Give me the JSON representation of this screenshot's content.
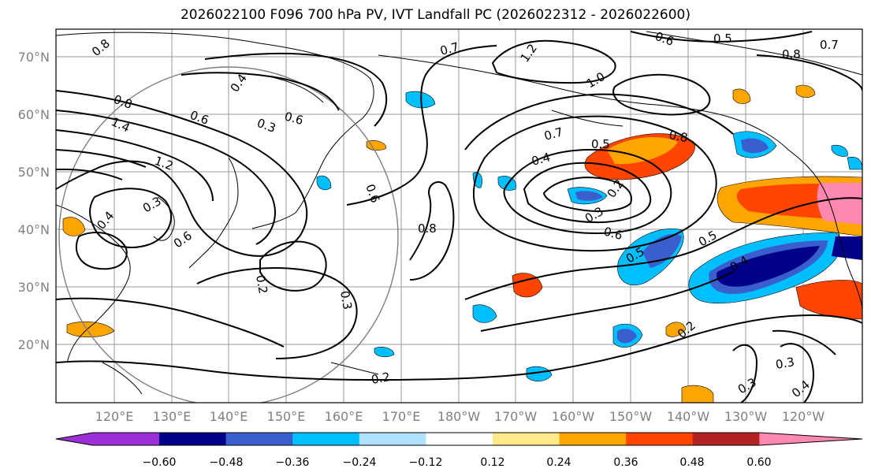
{
  "title": "2026022100 F096 700 hPa PV, IVT Landfall PC (2026022312 - 2026022600)",
  "map": {
    "lat_labels": [
      "70°N",
      "60°N",
      "50°N",
      "40°N",
      "30°N",
      "20°N"
    ],
    "lon_labels": [
      "120°E",
      "130°E",
      "140°E",
      "150°E",
      "160°E",
      "170°E",
      "180°W",
      "170°W",
      "160°W",
      "150°W",
      "140°W",
      "130°W",
      "120°W"
    ],
    "contour_labels": [
      "0.8",
      "0.7",
      "1.2",
      "1.0",
      "0.6",
      "0.5",
      "0.8",
      "0.7",
      "0.4",
      "0.6",
      "0.8",
      "1.4",
      "1.2",
      "0.3",
      "0.6",
      "0.6",
      "0.4",
      "0.6",
      "0.7",
      "0.5",
      "0.8",
      "0.4",
      "0.2",
      "0.3",
      "0.6",
      "0.8",
      "0.5",
      "0.4",
      "0.5",
      "0.2",
      "0.3",
      "0.3",
      "0.2",
      "0.2",
      "0.3",
      "0.3",
      "0.4"
    ]
  },
  "colorbar": {
    "ticks": [
      "−0.60",
      "−0.48",
      "−0.36",
      "−0.24",
      "−0.12",
      "0.12",
      "0.24",
      "0.36",
      "0.48",
      "0.60"
    ],
    "colors": [
      "#9b30d9",
      "#00008b",
      "#3a5fcd",
      "#00bfff",
      "#b0e2ff",
      "#ffffff",
      "#ffe98a",
      "#ffa500",
      "#ff4500",
      "#b22222",
      "#ff88b0"
    ]
  }
}
